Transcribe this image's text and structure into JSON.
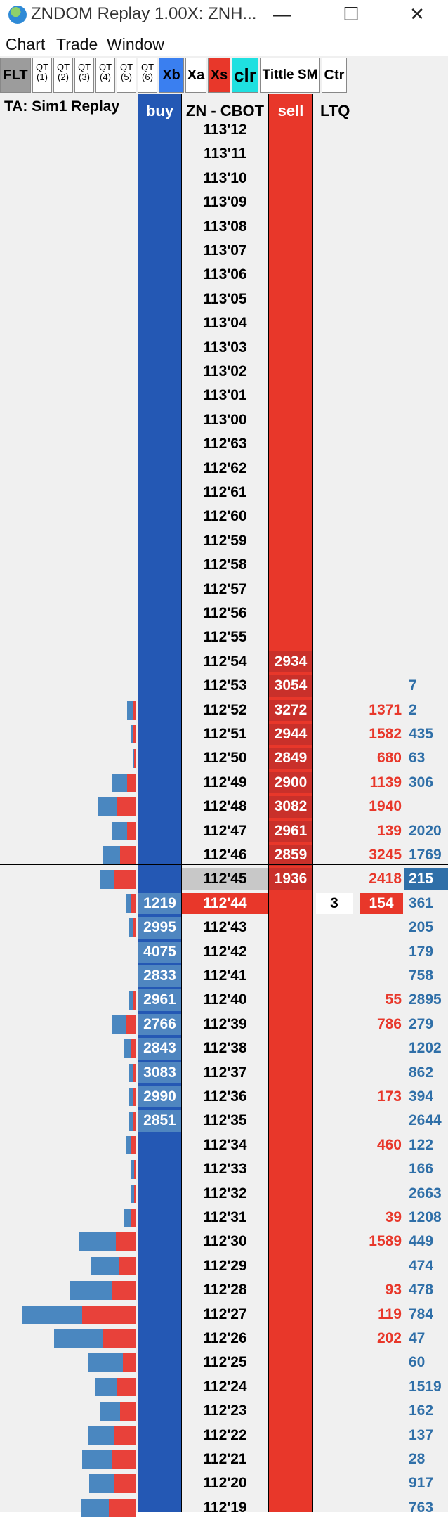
{
  "window": {
    "title": "ZNDOM Replay 1.00X: ZNH...",
    "min": "—",
    "max": "☐",
    "close": "✕"
  },
  "menu": [
    "Chart",
    "Trade",
    "Window"
  ],
  "toolbar": [
    {
      "label": "FLT",
      "bg": "#9c9c9c"
    },
    {
      "label": "QT (1)",
      "bg": "#ffffff"
    },
    {
      "label": "QT (2)",
      "bg": "#ffffff"
    },
    {
      "label": "QT (3)",
      "bg": "#ffffff"
    },
    {
      "label": "QT (4)",
      "bg": "#ffffff"
    },
    {
      "label": "QT (5)",
      "bg": "#ffffff"
    },
    {
      "label": "QT (6)",
      "bg": "#ffffff"
    },
    {
      "label": "Xb",
      "bg": "#3a7ff0"
    },
    {
      "label": "Xa",
      "bg": "#ffffff"
    },
    {
      "label": "Xs",
      "bg": "#e8372a"
    },
    {
      "label": "clr",
      "bg": "#1fe0e0"
    },
    {
      "label": "Tittle SM",
      "bg": "#ffffff"
    },
    {
      "label": "Ctr",
      "bg": "#ffffff"
    }
  ],
  "header": {
    "account": "TA: Sim1  Replay",
    "buy": "buy",
    "instrument": "ZN - CBOT",
    "sell": "sell",
    "ltq": "LTQ"
  },
  "colors": {
    "buy": "#2458b4",
    "sell": "#e8372a",
    "ltq": "#e8372a",
    "volume": "#2f6fa8"
  },
  "rows": [
    {
      "price": "113'12"
    },
    {
      "price": "113'11"
    },
    {
      "price": "113'10"
    },
    {
      "price": "113'09"
    },
    {
      "price": "113'08"
    },
    {
      "price": "113'07"
    },
    {
      "price": "113'06"
    },
    {
      "price": "113'05"
    },
    {
      "price": "113'04"
    },
    {
      "price": "113'03"
    },
    {
      "price": "113'02"
    },
    {
      "price": "113'01"
    },
    {
      "price": "113'00"
    },
    {
      "price": "112'63"
    },
    {
      "price": "112'62"
    },
    {
      "price": "112'61"
    },
    {
      "price": "112'60"
    },
    {
      "price": "112'59"
    },
    {
      "price": "112'58"
    },
    {
      "price": "112'57"
    },
    {
      "price": "112'56"
    },
    {
      "price": "112'55"
    },
    {
      "price": "112'54",
      "sell": "2934"
    },
    {
      "price": "112'53",
      "sell": "3054",
      "vol": "7"
    },
    {
      "price": "112'52",
      "sell": "3272",
      "ltq": "1371",
      "vol": "2"
    },
    {
      "price": "112'51",
      "sell": "2944",
      "ltq": "1582",
      "vol": "435"
    },
    {
      "price": "112'50",
      "sell": "2849",
      "ltq": "680",
      "vol": "63"
    },
    {
      "price": "112'49",
      "sell": "2900",
      "ltq": "1139",
      "vol": "306"
    },
    {
      "price": "112'48",
      "sell": "3082",
      "ltq": "1940"
    },
    {
      "price": "112'47",
      "sell": "2961",
      "ltq": "139",
      "vol": "2020"
    },
    {
      "price": "112'46",
      "sell": "2859",
      "ltq": "3245",
      "vol": "1769"
    },
    {
      "price": "112'45",
      "sell": "1936",
      "ltq": "2418",
      "vol": "215",
      "highlight": true
    },
    {
      "price": "112'44",
      "buy": "1219",
      "trade": "3",
      "ltq": "154",
      "vol": "361",
      "last": true
    },
    {
      "price": "112'43",
      "buy": "2995",
      "vol": "205"
    },
    {
      "price": "112'42",
      "buy": "4075",
      "vol": "179"
    },
    {
      "price": "112'41",
      "buy": "2833",
      "vol": "758"
    },
    {
      "price": "112'40",
      "buy": "2961",
      "ltq": "55",
      "vol": "2895"
    },
    {
      "price": "112'39",
      "buy": "2766",
      "ltq": "786",
      "vol": "279"
    },
    {
      "price": "112'38",
      "buy": "2843",
      "vol": "1202"
    },
    {
      "price": "112'37",
      "buy": "3083",
      "vol": "862"
    },
    {
      "price": "112'36",
      "buy": "2990",
      "ltq": "173",
      "vol": "394"
    },
    {
      "price": "112'35",
      "buy": "2851",
      "vol": "2644"
    },
    {
      "price": "112'34",
      "ltq": "460",
      "vol": "122"
    },
    {
      "price": "112'33",
      "vol": "166"
    },
    {
      "price": "112'32",
      "vol": "2663"
    },
    {
      "price": "112'31",
      "ltq": "39",
      "vol": "1208"
    },
    {
      "price": "112'30",
      "ltq": "1589",
      "vol": "449"
    },
    {
      "price": "112'29",
      "vol": "474"
    },
    {
      "price": "112'28",
      "ltq": "93",
      "vol": "478"
    },
    {
      "price": "112'27",
      "ltq": "119",
      "vol": "784"
    },
    {
      "price": "112'26",
      "ltq": "202",
      "vol": "47"
    },
    {
      "price": "112'25",
      "vol": "60"
    },
    {
      "price": "112'24",
      "vol": "1519"
    },
    {
      "price": "112'23",
      "vol": "162"
    },
    {
      "price": "112'22",
      "vol": "137"
    },
    {
      "price": "112'21",
      "vol": "28"
    },
    {
      "price": "112'20",
      "vol": "917"
    },
    {
      "price": "112'19",
      "vol": "763"
    }
  ]
}
